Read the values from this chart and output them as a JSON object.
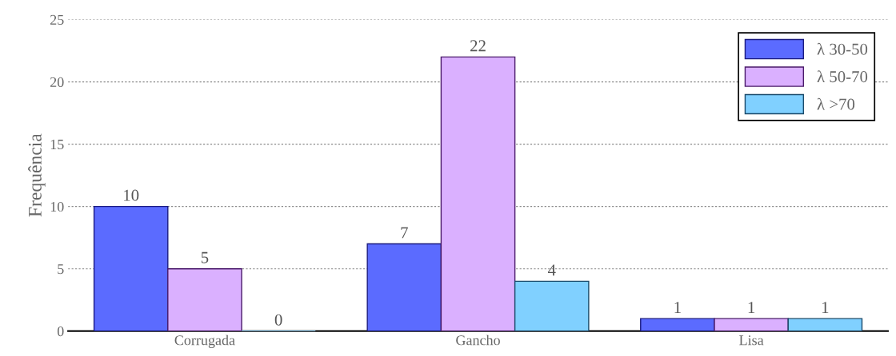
{
  "chart_data": {
    "type": "bar",
    "ylabel": "Frequência",
    "categories": [
      "Corrugada",
      "Gancho",
      "Lisa"
    ],
    "series": [
      {
        "name": "λ 30-50",
        "color": "#5b6bff",
        "values": [
          10,
          7,
          1
        ]
      },
      {
        "name": "λ 50-70",
        "color": "#dab0ff",
        "values": [
          5,
          22,
          1
        ]
      },
      {
        "name": "λ >70",
        "color": "#80d0ff",
        "values": [
          0,
          4,
          1
        ]
      }
    ],
    "ylim": [
      0,
      25
    ],
    "yticks": [
      0,
      5,
      10,
      15,
      20,
      25
    ],
    "grid": "y",
    "legend": "top right",
    "data_labels": true
  }
}
